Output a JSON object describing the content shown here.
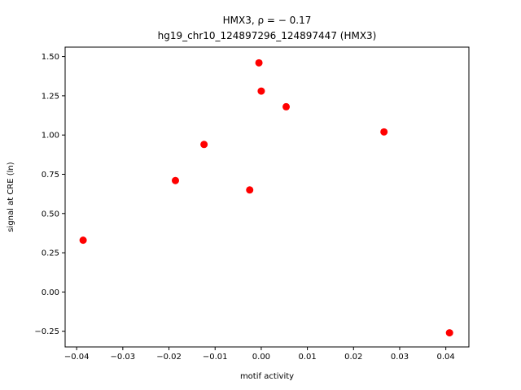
{
  "chart_data": {
    "type": "scatter",
    "title_line1": "HMX3, ρ = − 0.17",
    "title_line2": "hg19_chr10_124897296_124897447 (HMX3)",
    "xlabel": "motif activity",
    "ylabel": "signal at CRE (ln)",
    "xlim": [
      -0.0425,
      0.045
    ],
    "ylim": [
      -0.35,
      1.56
    ],
    "xticks": [
      -0.04,
      -0.03,
      -0.02,
      -0.01,
      0.0,
      0.01,
      0.02,
      0.03,
      0.04
    ],
    "xtick_labels": [
      "−0.04",
      "−0.03",
      "−0.02",
      "−0.01",
      "0.00",
      "0.01",
      "0.02",
      "0.03",
      "0.04"
    ],
    "yticks": [
      -0.25,
      0.0,
      0.25,
      0.5,
      0.75,
      1.0,
      1.25,
      1.5
    ],
    "ytick_labels": [
      "−0.25",
      "0.00",
      "0.25",
      "0.50",
      "0.75",
      "1.00",
      "1.25",
      "1.50"
    ],
    "grid": false,
    "marker_color": "#ff0000",
    "points": [
      {
        "x": -0.0386,
        "y": 0.33
      },
      {
        "x": -0.0186,
        "y": 0.71
      },
      {
        "x": -0.0124,
        "y": 0.94
      },
      {
        "x": -0.0025,
        "y": 0.65
      },
      {
        "x": -0.0005,
        "y": 1.46
      },
      {
        "x": 0.0,
        "y": 1.28
      },
      {
        "x": 0.0054,
        "y": 1.18
      },
      {
        "x": 0.0266,
        "y": 1.02
      },
      {
        "x": 0.0408,
        "y": -0.26
      }
    ]
  }
}
